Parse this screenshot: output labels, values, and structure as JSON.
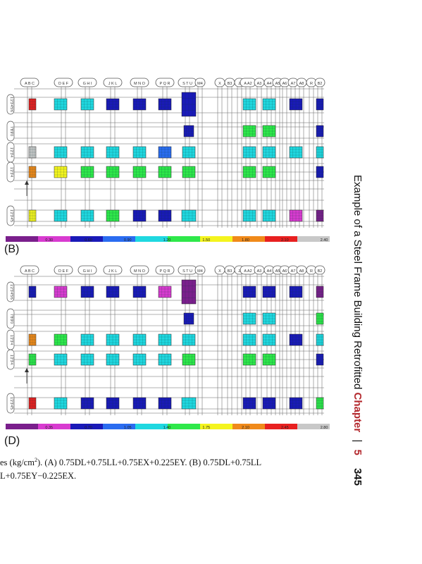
{
  "panels": [
    {
      "letter": "(B)",
      "column_labels": [
        "A B C",
        "D E F",
        "G H I",
        "J K L",
        "M N O",
        "P Q R",
        "S T U",
        "M4",
        "X",
        "B3",
        "Z",
        "A A2",
        "A3",
        "A4",
        "A5",
        "A6",
        "A7",
        "A8",
        "R",
        "B2"
      ],
      "row_labels": [
        "1'2'3'4'5'6",
        "7'8'9'0",
        "1'2'3'4",
        "1'2'3'4",
        "1'2'3'4'5"
      ],
      "scale_ticks": [
        "0.30",
        "0.60",
        "0.90",
        "1.20",
        "1.50",
        "1.80",
        "2.10",
        "2.40"
      ]
    },
    {
      "letter": "(D)",
      "column_labels": [
        "A B C",
        "D E F",
        "G H I",
        "J K L",
        "M N O",
        "P Q R",
        "S T U",
        "M4",
        "X",
        "B3",
        "Z",
        "A A2",
        "A3",
        "A4",
        "A5",
        "A6",
        "A7",
        "A8",
        "R",
        "B2"
      ],
      "row_labels": [
        "1'2'3'4'5'6",
        "7'8'9'0",
        "1'2'3'4",
        "1'2'3'4",
        "1'2'3'4'5"
      ],
      "scale_ticks": [
        "0.35",
        "0.70",
        "1.05",
        "1.40",
        "1.75",
        "2.10",
        "2.45",
        "2.80"
      ]
    }
  ],
  "caption": {
    "line1_prefix": "es (kg/cm",
    "line1_sup": "2",
    "line1_a": "). (A) 0.75DL+0.75LL+0.75EX+0.225EY. (B) 0.75DL+0.75LL",
    "line2": "L+0.75EY−0.225EX."
  },
  "running_head": {
    "title": "Example of a Steel Frame Building Retrofitted",
    "chapter_label": "Chapter",
    "chapter_number": "5",
    "separator": "|",
    "page_number": "345"
  },
  "colors": {
    "chapter_accent": "#b3282d",
    "scale": [
      "#7a1f8c",
      "#d83bd0",
      "#1a1ab8",
      "#2a6cf0",
      "#1fd8e0",
      "#2ee84a",
      "#f4f41e",
      "#f08a1a",
      "#e82020",
      "#c8c8c8"
    ]
  }
}
